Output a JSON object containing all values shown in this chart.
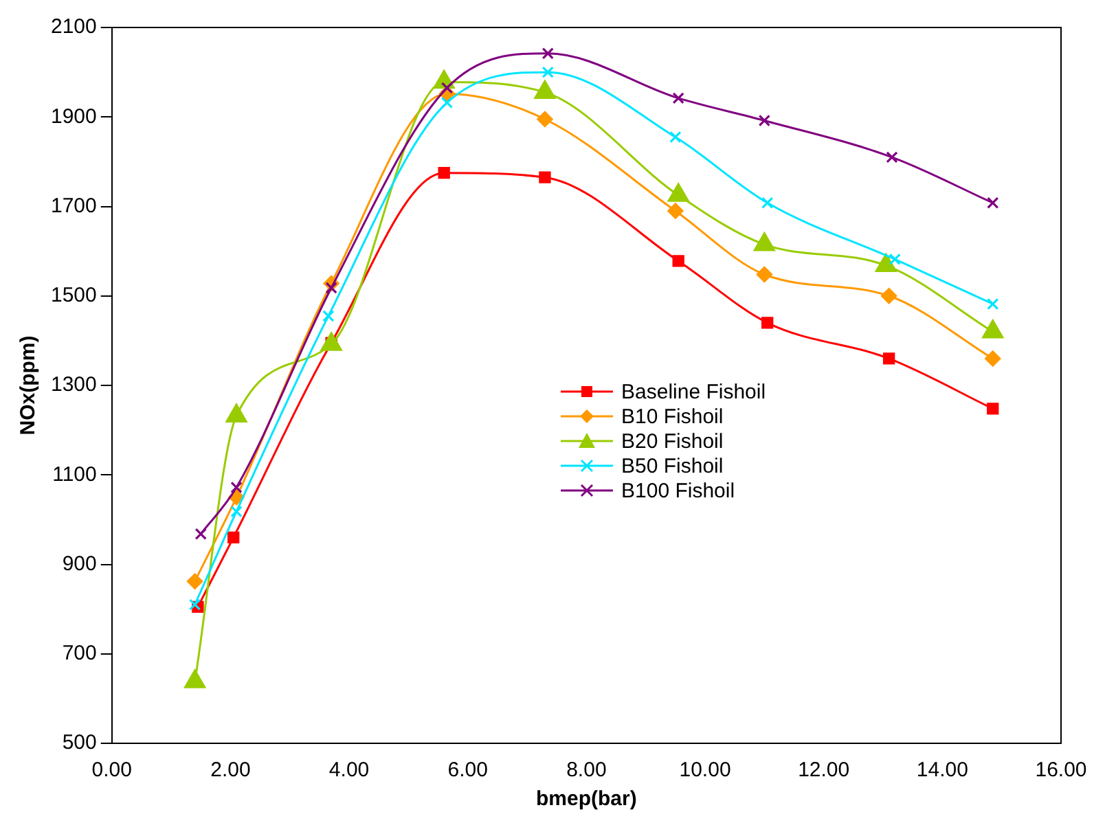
{
  "chart_data": {
    "type": "line",
    "xlabel": "bmep(bar)",
    "ylabel": "NOx(ppm)",
    "xlim": [
      0,
      16
    ],
    "xticks": [
      {
        "value": 0,
        "label": "0.00"
      },
      {
        "value": 2,
        "label": "2.00"
      },
      {
        "value": 4,
        "label": "4.00"
      },
      {
        "value": 6,
        "label": "6.00"
      },
      {
        "value": 8,
        "label": "8.00"
      },
      {
        "value": 10,
        "label": "10.00"
      },
      {
        "value": 12,
        "label": "12.00"
      },
      {
        "value": 14,
        "label": "14.00"
      },
      {
        "value": 16,
        "label": "16.00"
      }
    ],
    "ylim": [
      500,
      2100
    ],
    "yticks": [
      500,
      700,
      900,
      1100,
      1300,
      1500,
      1700,
      1900,
      2100
    ],
    "grid": false,
    "legend": "center",
    "series": [
      {
        "name": "Baseline Fishoil",
        "color": "#ff0000",
        "marker": "square",
        "x": [
          1.45,
          2.05,
          3.7,
          5.6,
          7.3,
          9.55,
          11.05,
          13.1,
          14.85
        ],
        "values": [
          805,
          960,
          1395,
          1775,
          1765,
          1578,
          1440,
          1360,
          1248
        ]
      },
      {
        "name": "B10 Fishoil",
        "color": "#ff9900",
        "marker": "diamond",
        "x": [
          1.4,
          2.1,
          3.7,
          5.65,
          7.3,
          9.5,
          11.0,
          13.1,
          14.85
        ],
        "values": [
          862,
          1050,
          1528,
          1952,
          1895,
          1690,
          1548,
          1500,
          1360
        ]
      },
      {
        "name": "B20 Fishoil",
        "color": "#99cc00",
        "marker": "triangle",
        "x": [
          1.4,
          2.1,
          3.7,
          5.6,
          7.3,
          9.55,
          11.0,
          13.05,
          14.85
        ],
        "values": [
          638,
          1232,
          1392,
          1978,
          1955,
          1725,
          1615,
          1568,
          1420
        ]
      },
      {
        "name": "B50 Fishoil",
        "color": "#00e5ff",
        "marker": "cross",
        "x": [
          1.4,
          2.1,
          3.65,
          5.65,
          7.35,
          9.5,
          11.05,
          13.2,
          14.85
        ],
        "values": [
          810,
          1018,
          1455,
          1932,
          2000,
          1855,
          1708,
          1582,
          1482
        ]
      },
      {
        "name": "B100 Fishoil",
        "color": "#800080",
        "marker": "cross",
        "x": [
          1.5,
          2.1,
          3.7,
          5.65,
          7.35,
          9.55,
          11.0,
          13.15,
          14.85
        ],
        "values": [
          968,
          1072,
          1518,
          1965,
          2042,
          1942,
          1892,
          1810,
          1708
        ]
      }
    ]
  }
}
